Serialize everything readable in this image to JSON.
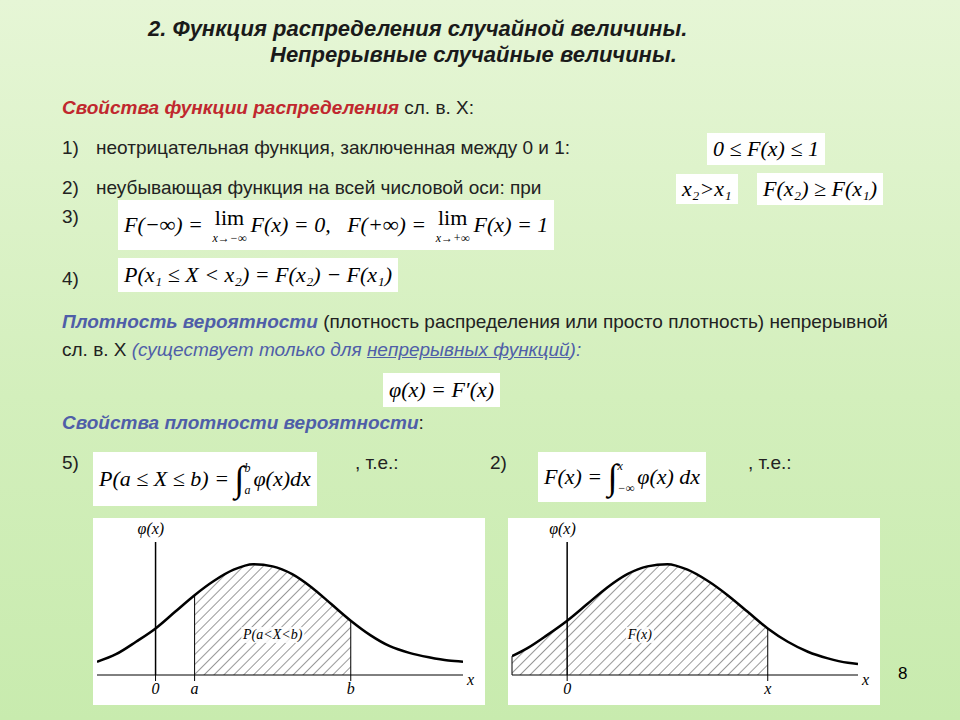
{
  "slide": {
    "title": "2. Функция распределения случайной величины.",
    "subtitle": "Непрерывные случайные величины.",
    "page": 8,
    "section1": {
      "heading": "Свойства функции распределения",
      "heading_rest": " сл. в. X:"
    },
    "items": [
      {
        "num": "1)",
        "text": "неотрицательная функция, заключенная между 0 и 1:",
        "formula": [
          {
            "text": "0 ≤ F(x) ≤ 1"
          }
        ]
      },
      {
        "num": "2)",
        "text": "неубывающая функция на всей числовой оси:  при",
        "condition": [
          {
            "text": "x₂>x₁"
          }
        ],
        "formula": [
          {
            "text": "F(x₂) ≥ F(x₁)"
          }
        ]
      },
      {
        "num": "3)",
        "formula": [
          {
            "text": "F(−∞) = "
          },
          {
            "lim": "lim",
            "under": "x→−∞"
          },
          {
            "text": "F(x) = 0,   F(+∞) = "
          },
          {
            "lim": "lim",
            "under": "x→+∞"
          },
          {
            "text": "F(x) = 1"
          }
        ]
      },
      {
        "num": "4)",
        "formula": [
          {
            "text": "P(x₁ ≤ X < x₂) = F(x₂) − F(x₁)"
          }
        ]
      }
    ],
    "density": {
      "heading": "Плотность вероятности",
      "text": " (плотность распределения или просто плотность) непрерывной сл. в. X ",
      "note_a": "(существует только для ",
      "note_u": "непрерывных функций",
      "note_b": "):",
      "formula": [
        {
          "text": "φ(x) = F′(x)"
        }
      ]
    },
    "section2": {
      "heading": "Свойства плотности вероятности",
      "heading_rest": ":"
    },
    "properties": [
      {
        "num": "5)",
        "formula": [
          {
            "text": "P(a ≤ X ≤ b) = "
          },
          {
            "int": "∫",
            "upper": "b",
            "lower": "a"
          },
          {
            "text": "φ(x)dx"
          }
        ],
        "after": ", т.е.:"
      },
      {
        "num": "2)",
        "formula": [
          {
            "text": "F(x) = "
          },
          {
            "int": "∫",
            "upper": "x",
            "lower": "−∞"
          },
          {
            "text": "φ(x) dx"
          }
        ],
        "after": ", т.е.:"
      }
    ]
  },
  "chart_data": [
    {
      "type": "area",
      "y_label": "φ(x)",
      "x_label": "x",
      "annotation": "P(a<X<b)",
      "color": "#000000",
      "tick_labels": "x",
      "x": [
        -3,
        -2,
        -1,
        0,
        1,
        2,
        3,
        4,
        5,
        6,
        7,
        8,
        9,
        10,
        11,
        12,
        13,
        14,
        15,
        15.75
      ],
      "values": [
        0.12,
        0.19,
        0.3,
        0.42,
        0.57,
        0.72,
        0.85,
        0.95,
        1.0,
        0.98,
        0.91,
        0.79,
        0.64,
        0.49,
        0.36,
        0.26,
        0.2,
        0.16,
        0.13,
        0.12
      ],
      "xlim": [
        -3,
        15.75
      ],
      "ylim": [
        0,
        1.2
      ],
      "xticks": [
        0,
        {
          "value": 2,
          "label": "a"
        },
        {
          "value": 10,
          "label": "b"
        }
      ],
      "shade": [
        2,
        10
      ]
    },
    {
      "type": "area",
      "y_label": "φ(x)",
      "x_label": "x",
      "annotation": "F(x)",
      "color": "#000000",
      "tick_labels": "x",
      "x": [
        -2.75,
        -2,
        -1,
        0,
        1,
        2,
        3,
        4,
        5,
        6,
        7,
        8,
        9,
        10,
        11,
        12,
        13,
        14,
        14.5
      ],
      "values": [
        0.17,
        0.24,
        0.36,
        0.49,
        0.64,
        0.79,
        0.91,
        0.98,
        1.0,
        0.95,
        0.85,
        0.72,
        0.57,
        0.42,
        0.3,
        0.21,
        0.15,
        0.11,
        0.1
      ],
      "xlim": [
        -2.75,
        14.5
      ],
      "ylim": [
        0,
        1.2
      ],
      "xticks": [
        0,
        {
          "value": 10,
          "label": "x"
        }
      ],
      "shade": [
        -2.75,
        10
      ]
    }
  ]
}
